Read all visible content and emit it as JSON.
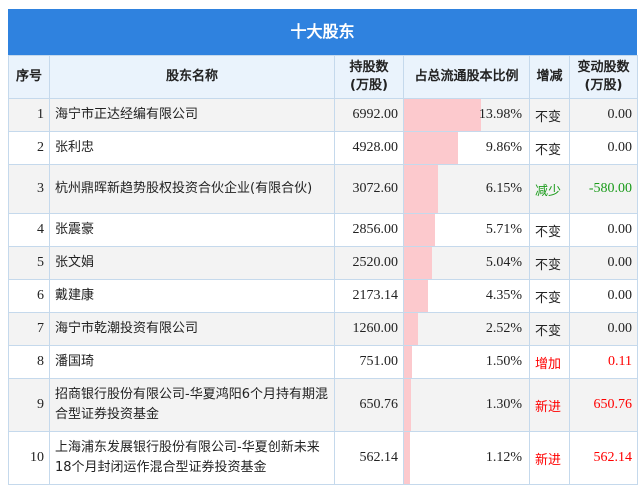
{
  "title": "十大股东",
  "headers": {
    "idx": "序号",
    "name": "股东名称",
    "shares": "持股数\n(万股)",
    "ratio": "占总流通股本比例",
    "change": "增减",
    "delta": "变动股数\n(万股)"
  },
  "colors": {
    "increase": "#ff0000",
    "decrease": "#1a9b1a",
    "neutral": "#222222",
    "bar": "#fcc9cd",
    "title_bg": "#2f82df"
  },
  "rows": [
    {
      "idx": "1",
      "name": "海宁市正达经编有限公司",
      "shares": "6992.00",
      "ratio": "13.98%",
      "ratio_value": 13.98,
      "change": "不变",
      "delta": "0.00",
      "trend": "neutral"
    },
    {
      "idx": "2",
      "name": "张利忠",
      "shares": "4928.00",
      "ratio": "9.86%",
      "ratio_value": 9.86,
      "change": "不变",
      "delta": "0.00",
      "trend": "neutral"
    },
    {
      "idx": "3",
      "name": "杭州鼎晖新趋势股权投资合伙企业(有限合伙)",
      "shares": "3072.60",
      "ratio": "6.15%",
      "ratio_value": 6.15,
      "change": "减少",
      "delta": "-580.00",
      "trend": "decrease"
    },
    {
      "idx": "4",
      "name": "张震豪",
      "shares": "2856.00",
      "ratio": "5.71%",
      "ratio_value": 5.71,
      "change": "不变",
      "delta": "0.00",
      "trend": "neutral"
    },
    {
      "idx": "5",
      "name": "张文娟",
      "shares": "2520.00",
      "ratio": "5.04%",
      "ratio_value": 5.04,
      "change": "不变",
      "delta": "0.00",
      "trend": "neutral"
    },
    {
      "idx": "6",
      "name": "戴建康",
      "shares": "2173.14",
      "ratio": "4.35%",
      "ratio_value": 4.35,
      "change": "不变",
      "delta": "0.00",
      "trend": "neutral"
    },
    {
      "idx": "7",
      "name": "海宁市乾潮投资有限公司",
      "shares": "1260.00",
      "ratio": "2.52%",
      "ratio_value": 2.52,
      "change": "不变",
      "delta": "0.00",
      "trend": "neutral"
    },
    {
      "idx": "8",
      "name": "潘国琦",
      "shares": "751.00",
      "ratio": "1.50%",
      "ratio_value": 1.5,
      "change": "增加",
      "delta": "0.11",
      "trend": "increase"
    },
    {
      "idx": "9",
      "name": "招商银行股份有限公司-华夏鸿阳6个月持有期混合型证券投资基金",
      "shares": "650.76",
      "ratio": "1.30%",
      "ratio_value": 1.3,
      "change": "新进",
      "delta": "650.76",
      "trend": "increase"
    },
    {
      "idx": "10",
      "name": "上海浦东发展银行股份有限公司-华夏创新未来18个月封闭运作混合型证券投资基金",
      "shares": "562.14",
      "ratio": "1.12%",
      "ratio_value": 1.12,
      "change": "新进",
      "delta": "562.14",
      "trend": "increase"
    }
  ]
}
